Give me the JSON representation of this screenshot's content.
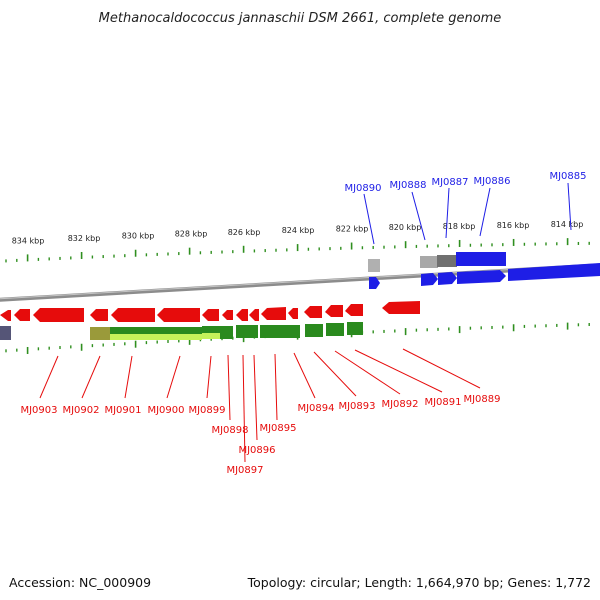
{
  "title": "Methanocaldococcus jannaschii DSM 2661, complete genome",
  "footer": {
    "accession": "Accession: NC_000909",
    "summary": "Topology: circular; Length: 1,664,970 bp; Genes: 1,772"
  },
  "colors": {
    "forward_gene": "#1e1ee6",
    "reverse_gene": "#e60c0c",
    "backbone": "#8c8c8c",
    "ticks": "#2f8f1f",
    "feature_green": "#2a8a1e",
    "feature_lime": "#c6f25a",
    "feature_gray": "#a8a8a8"
  },
  "ruler_ticks": [
    "834 kbp",
    "832 kbp",
    "830 kbp",
    "828 kbp",
    "826 kbp",
    "824 kbp",
    "822 kbp",
    "820 kbp",
    "818 kbp",
    "816 kbp",
    "814 kbp"
  ],
  "forward_genes": [
    "MJ0890",
    "MJ0888",
    "MJ0887",
    "MJ0886",
    "MJ0885"
  ],
  "reverse_genes": [
    "MJ0903",
    "MJ0902",
    "MJ0901",
    "MJ0900",
    "MJ0899",
    "MJ0898",
    "MJ0896",
    "MJ0897",
    "MJ0895",
    "MJ0894",
    "MJ0893",
    "MJ0892",
    "MJ0891",
    "MJ0889"
  ]
}
